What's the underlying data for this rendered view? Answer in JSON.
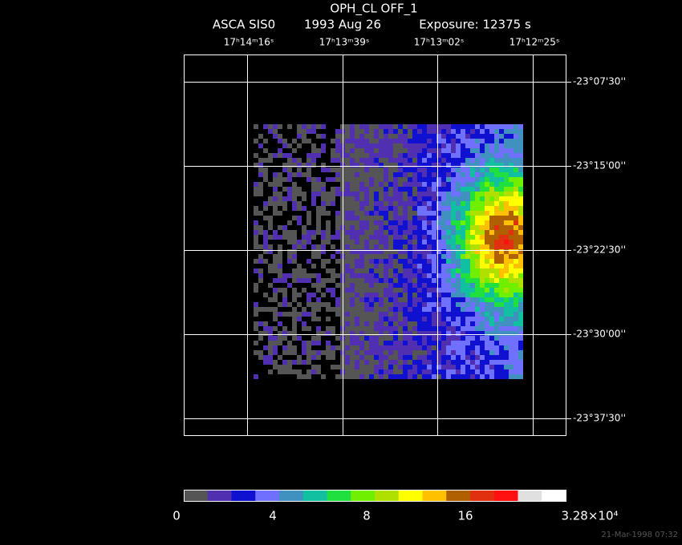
{
  "header": {
    "title": "OPH_CL OFF_1",
    "instrument": "ASCA SIS0",
    "date": "1993 Aug 26",
    "exposure": "Exposure: 12375 s"
  },
  "ra_labels": [
    "17ʰ14ᵐ16ˢ",
    "17ʰ13ᵐ39ˢ",
    "17ʰ13ᵐ02ˢ",
    "17ʰ12ᵐ25ˢ"
  ],
  "dec_labels": [
    "-23°07'30''",
    "-23°15'00''",
    "-23°22'30''",
    "-23°30'00''",
    "-23°37'30''"
  ],
  "colorbar": {
    "colors": [
      "#555555",
      "#5030b0",
      "#1010d0",
      "#7070ff",
      "#4090c0",
      "#10c0a0",
      "#20e040",
      "#70f000",
      "#b0e000",
      "#ffff00",
      "#ffc000",
      "#b06000",
      "#e03010",
      "#ff1010",
      "#e0e0e0",
      "#ffffff"
    ],
    "labels": [
      "0",
      "4",
      "8",
      "16",
      "3.28×10⁴"
    ]
  },
  "timestamp": "21-Mar-1998 07:32"
}
